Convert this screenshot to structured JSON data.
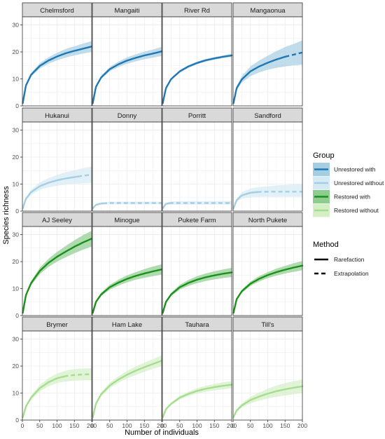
{
  "chart_data": {
    "type": "line",
    "xlabel": "Number of individuals",
    "ylabel": "Species richness",
    "xlim": [
      0,
      200
    ],
    "ylim": [
      0,
      33
    ],
    "x_ticks": [
      0,
      50,
      100,
      150,
      200
    ],
    "y_ticks": [
      0,
      10,
      20,
      30
    ],
    "grid": true,
    "legend_position": "right",
    "group_legend": {
      "title": "Group",
      "entries": [
        {
          "name": "Unrestored with",
          "color": "#1f78b4",
          "fill": "#a6cee3"
        },
        {
          "name": "Unrestored without",
          "color": "#a6cee3",
          "fill": "#d6eaf5"
        },
        {
          "name": "Restored with",
          "color": "#1a921a",
          "fill": "#8fcc8f"
        },
        {
          "name": "Restored without",
          "color": "#a6de8f",
          "fill": "#d4efc6"
        }
      ]
    },
    "method_legend": {
      "title": "Method",
      "entries": [
        {
          "name": "Rarefaction",
          "linetype": "solid"
        },
        {
          "name": "Extrapolation",
          "linetype": "dashed"
        }
      ]
    },
    "panels": [
      {
        "site": "Chelmsford",
        "group": 0,
        "x": [
          1,
          10,
          25,
          50,
          75,
          100,
          125,
          150,
          175,
          200
        ],
        "y": [
          1,
          7.5,
          11.5,
          14.8,
          16.8,
          18.3,
          19.5,
          20.4,
          21.2,
          22
        ],
        "lower": [
          1,
          7,
          10.8,
          13.8,
          15.6,
          16.9,
          17.9,
          18.7,
          19.4,
          20
        ],
        "upper": [
          1,
          8,
          12.2,
          15.8,
          18,
          19.7,
          21.1,
          22.1,
          23.1,
          24
        ],
        "obs_max": 200
      },
      {
        "site": "Mangaiti",
        "group": 0,
        "x": [
          1,
          10,
          25,
          50,
          75,
          100,
          125,
          150,
          175,
          200
        ],
        "y": [
          1,
          7,
          10.5,
          13.6,
          15.4,
          16.8,
          17.8,
          18.7,
          19.4,
          20.2
        ],
        "lower": [
          1,
          6.6,
          9.9,
          12.8,
          14.4,
          15.6,
          16.5,
          17.3,
          17.9,
          18.5
        ],
        "upper": [
          1,
          7.4,
          11.1,
          14.4,
          16.4,
          18,
          19.1,
          20.1,
          20.9,
          21.9
        ],
        "obs_max": 200
      },
      {
        "site": "River Rd",
        "group": 0,
        "x": [
          1,
          10,
          25,
          50,
          75,
          100,
          125,
          150,
          175,
          200
        ],
        "y": [
          1,
          6.5,
          9.9,
          12.8,
          14.6,
          15.9,
          16.9,
          17.6,
          18.2,
          18.7
        ],
        "lower": [
          1,
          6.2,
          9.5,
          12.3,
          14.1,
          15.4,
          16.4,
          17.1,
          17.7,
          18.1
        ],
        "upper": [
          1,
          6.8,
          10.3,
          13.3,
          15.1,
          16.4,
          17.4,
          18.1,
          18.7,
          19.3
        ],
        "obs_max": 200
      },
      {
        "site": "Mangaonua",
        "group": 0,
        "x": [
          1,
          10,
          25,
          50,
          75,
          100,
          125,
          150,
          175,
          200
        ],
        "y": [
          1,
          6.5,
          9.8,
          12.8,
          14.6,
          16,
          17.2,
          18.2,
          19,
          19.8
        ],
        "lower": [
          1,
          5.8,
          8.6,
          11,
          12.4,
          13.4,
          14.1,
          14.6,
          15,
          15.3
        ],
        "upper": [
          1,
          7.2,
          11,
          14.6,
          16.8,
          18.6,
          20.3,
          21.8,
          23,
          24.3
        ],
        "obs_max": 150
      },
      {
        "site": "Hukanui",
        "group": 1,
        "x": [
          1,
          10,
          25,
          50,
          75,
          100,
          125,
          150,
          175,
          200
        ],
        "y": [
          1,
          4.5,
          7,
          9.2,
          10.5,
          11.4,
          12.1,
          12.6,
          13.1,
          13.5
        ],
        "lower": [
          1,
          4,
          6,
          7.8,
          8.8,
          9.4,
          9.8,
          10.1,
          10.3,
          10.5
        ],
        "upper": [
          1,
          5,
          8,
          10.6,
          12.2,
          13.4,
          14.4,
          15.1,
          15.9,
          16.5
        ],
        "obs_max": 160
      },
      {
        "site": "Donny",
        "group": 1,
        "x": [
          1,
          10,
          25,
          50,
          75,
          100,
          125,
          150,
          175,
          200
        ],
        "y": [
          1,
          2.3,
          2.8,
          3,
          3,
          3,
          3,
          3,
          3,
          3
        ],
        "lower": [
          1,
          2,
          2.4,
          2.5,
          2.5,
          2.5,
          2.5,
          2.5,
          2.5,
          2.5
        ],
        "upper": [
          1,
          2.6,
          3.2,
          3.5,
          3.5,
          3.5,
          3.5,
          3.5,
          3.5,
          3.5
        ],
        "obs_max": 30
      },
      {
        "site": "Porritt",
        "group": 1,
        "x": [
          1,
          10,
          25,
          50,
          75,
          100,
          125,
          150,
          175,
          200
        ],
        "y": [
          1,
          2.7,
          3,
          3,
          3,
          3,
          3,
          3,
          3,
          3
        ],
        "lower": [
          1,
          2.3,
          2.4,
          2.4,
          2.4,
          2.4,
          2.4,
          2.4,
          2.4,
          2.4
        ],
        "upper": [
          1,
          3.1,
          3.6,
          3.7,
          3.7,
          3.7,
          3.7,
          3.7,
          3.7,
          3.7
        ],
        "obs_max": 20
      },
      {
        "site": "Sandford",
        "group": 1,
        "x": [
          1,
          10,
          25,
          50,
          75,
          100,
          125,
          150,
          175,
          200
        ],
        "y": [
          1,
          4,
          5.8,
          6.8,
          7.1,
          7.2,
          7.2,
          7.2,
          7.2,
          7.2
        ],
        "lower": [
          1,
          3.4,
          4.6,
          5.2,
          5.3,
          5.3,
          5.3,
          5.3,
          5.3,
          5.3
        ],
        "upper": [
          1,
          4.6,
          7,
          8.4,
          8.9,
          9.2,
          9.5,
          9.7,
          9.9,
          10
        ],
        "obs_max": 70
      },
      {
        "site": "AJ Seeley",
        "group": 2,
        "x": [
          1,
          10,
          25,
          50,
          75,
          100,
          125,
          150,
          175,
          200
        ],
        "y": [
          1,
          7.5,
          12,
          16.5,
          19.5,
          21.8,
          23.7,
          25.5,
          27.1,
          28.5
        ],
        "lower": [
          1,
          7,
          11.2,
          15.3,
          18,
          20,
          21.6,
          23.1,
          24.4,
          25.6
        ],
        "upper": [
          1,
          8,
          12.8,
          17.7,
          21,
          23.6,
          25.8,
          27.9,
          29.8,
          31.4
        ],
        "obs_max": 200
      },
      {
        "site": "Minogue",
        "group": 2,
        "x": [
          1,
          10,
          25,
          50,
          75,
          100,
          125,
          150,
          175,
          200
        ],
        "y": [
          1,
          5,
          7.8,
          10.5,
          12.2,
          13.6,
          14.7,
          15.6,
          16.4,
          17.1
        ],
        "lower": [
          1,
          4.6,
          7.2,
          9.6,
          11.1,
          12.3,
          13.3,
          14,
          14.6,
          15.2
        ],
        "upper": [
          1,
          5.4,
          8.4,
          11.4,
          13.3,
          14.9,
          16.1,
          17.2,
          18.2,
          19
        ],
        "obs_max": 200
      },
      {
        "site": "Pukete Farm",
        "group": 2,
        "x": [
          1,
          10,
          25,
          50,
          75,
          100,
          125,
          150,
          175,
          200
        ],
        "y": [
          1,
          5,
          7.8,
          10.5,
          12.1,
          13.3,
          14.2,
          14.9,
          15.5,
          16
        ],
        "lower": [
          1,
          4.6,
          7.2,
          9.6,
          11,
          12,
          12.8,
          13.4,
          13.9,
          14.3
        ],
        "upper": [
          1,
          5.4,
          8.4,
          11.4,
          13.2,
          14.6,
          15.6,
          16.4,
          17.1,
          17.7
        ],
        "obs_max": 200
      },
      {
        "site": "North Pukete",
        "group": 2,
        "x": [
          1,
          10,
          25,
          50,
          75,
          100,
          125,
          150,
          175,
          200
        ],
        "y": [
          1,
          6,
          9,
          11.8,
          13.6,
          15,
          16.1,
          17,
          17.8,
          18.5
        ],
        "lower": [
          1,
          5.6,
          8.4,
          11,
          12.6,
          13.9,
          14.8,
          15.6,
          16.2,
          16.8
        ],
        "upper": [
          1,
          6.4,
          9.6,
          12.6,
          14.6,
          16.1,
          17.4,
          18.4,
          19.4,
          20.2
        ],
        "obs_max": 200
      },
      {
        "site": "Brymer",
        "group": 3,
        "x": [
          1,
          10,
          25,
          50,
          75,
          100,
          125,
          150,
          175,
          200
        ],
        "y": [
          1,
          5,
          8.3,
          11.8,
          14,
          15.5,
          16.3,
          16.7,
          16.9,
          17
        ],
        "lower": [
          1,
          4.5,
          7.5,
          10.6,
          12.5,
          13.7,
          14.3,
          14.6,
          14.7,
          14.8
        ],
        "upper": [
          1,
          5.5,
          9.1,
          13,
          15.5,
          17.3,
          18.3,
          18.9,
          19.1,
          19.2
        ],
        "obs_max": 120
      },
      {
        "site": "Ham Lake",
        "group": 3,
        "x": [
          1,
          10,
          25,
          50,
          75,
          100,
          125,
          150,
          175,
          200
        ],
        "y": [
          1,
          6,
          9.5,
          12.8,
          15,
          16.8,
          18.3,
          19.6,
          20.8,
          22
        ],
        "lower": [
          1,
          5.5,
          8.8,
          11.8,
          13.8,
          15.4,
          16.7,
          17.9,
          19,
          20
        ],
        "upper": [
          1,
          6.5,
          10.2,
          13.8,
          16.2,
          18.2,
          19.9,
          21.3,
          22.6,
          24
        ],
        "obs_max": 200
      },
      {
        "site": "Tauhara",
        "group": 3,
        "x": [
          1,
          10,
          25,
          50,
          75,
          100,
          125,
          150,
          175,
          200
        ],
        "y": [
          1,
          4,
          6,
          8.3,
          9.7,
          10.8,
          11.6,
          12.2,
          12.7,
          13.1
        ],
        "lower": [
          1,
          3.6,
          5.5,
          7.6,
          8.9,
          9.8,
          10.5,
          11,
          11.4,
          11.8
        ],
        "upper": [
          1,
          4.4,
          6.5,
          9,
          10.5,
          11.8,
          12.7,
          13.4,
          14,
          14.4
        ],
        "obs_max": 200
      },
      {
        "site": "Till's",
        "group": 3,
        "x": [
          1,
          10,
          25,
          50,
          75,
          100,
          125,
          150,
          175,
          200
        ],
        "y": [
          1,
          3.5,
          5.4,
          7.4,
          8.7,
          9.8,
          10.7,
          11.4,
          12,
          12.5
        ],
        "lower": [
          1,
          3,
          4.6,
          6.2,
          7.2,
          8,
          8.6,
          9.1,
          9.6,
          10
        ],
        "upper": [
          1,
          4,
          6.2,
          8.6,
          10.2,
          11.6,
          12.8,
          13.7,
          14.4,
          15
        ],
        "obs_max": 200
      }
    ]
  }
}
